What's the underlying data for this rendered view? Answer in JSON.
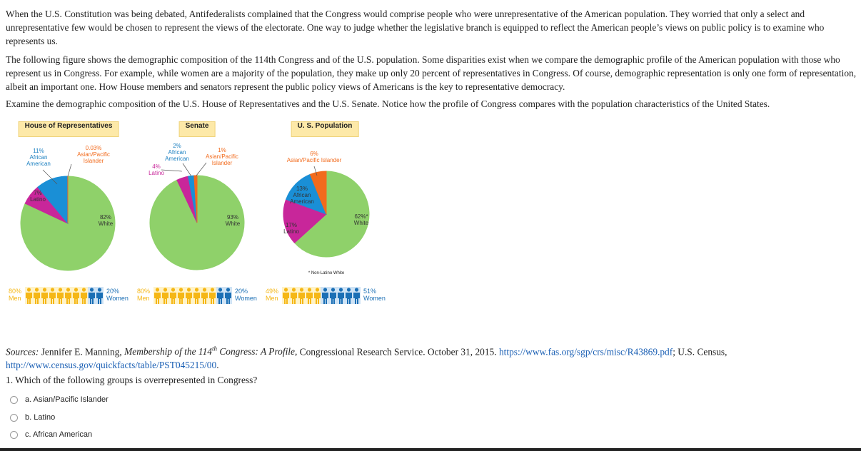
{
  "paragraphs": [
    "When the U.S. Constitution was being debated, Antifederalists complained that the Congress would comprise people who were unrepresentative of the American population. They worried that only a select and unrepresentative few would be chosen to represent the views of the electorate. One way to judge whether the legislative branch is equipped to reflect the American people’s views on public policy is to examine who represents us.",
    "The following figure shows the demographic composition of the 114th Congress and of the U.S. population. Some disparities exist when we compare the demographic profile of the American population with those who represent us in Congress. For example, while women are a majority of the population, they make up only 20 percent of representatives in Congress. Of course, demographic representation is only one form of representation, albeit an important one. How House members and senators represent the public policy views of Americans is the key to representative democracy.",
    "Examine the demographic composition of the U.S. House of Representatives and the U.S. Senate. Notice how the profile of Congress compares with the population characteristics of the United States."
  ],
  "chart_data": [
    {
      "type": "pie",
      "title": "House of Representatives",
      "categories": [
        "White",
        "Latino",
        "African American",
        "Asian/Pacific Islander"
      ],
      "values": [
        82,
        7,
        11,
        0.03
      ],
      "value_labels": [
        "82%",
        "7%",
        "11%",
        "0.03%"
      ],
      "colors": [
        "#8fd16a",
        "#c8269a",
        "#1a8fd6",
        "#f26b1d"
      ],
      "gender": {
        "categories": [
          "Men",
          "Women"
        ],
        "values": [
          80,
          20
        ],
        "value_labels": [
          "80%",
          "20%"
        ],
        "colors": [
          "#f5b716",
          "#1b6fb5"
        ]
      }
    },
    {
      "type": "pie",
      "title": "Senate",
      "categories": [
        "White",
        "Latino",
        "African American",
        "Asian/Pacific Islander"
      ],
      "values": [
        93,
        4,
        2,
        1
      ],
      "value_labels": [
        "93%",
        "4%",
        "2%",
        "1%"
      ],
      "colors": [
        "#8fd16a",
        "#c8269a",
        "#1a8fd6",
        "#f26b1d"
      ],
      "gender": {
        "categories": [
          "Men",
          "Women"
        ],
        "values": [
          80,
          20
        ],
        "value_labels": [
          "80%",
          "20%"
        ],
        "colors": [
          "#f5b716",
          "#1b6fb5"
        ]
      }
    },
    {
      "type": "pie",
      "title": "U. S. Population",
      "categories": [
        "White",
        "Latino",
        "African American",
        "Asian/Pacific Islander"
      ],
      "values": [
        62,
        17,
        13,
        6
      ],
      "value_labels": [
        "62%*",
        "17%",
        "13%",
        "6%"
      ],
      "colors": [
        "#8fd16a",
        "#c8269a",
        "#1a8fd6",
        "#f26b1d"
      ],
      "note": "* Non-Latino White",
      "gender": {
        "categories": [
          "Men",
          "Women"
        ],
        "values": [
          49,
          51
        ],
        "value_labels": [
          "49%",
          "51%"
        ],
        "colors": [
          "#f5b716",
          "#1b6fb5"
        ]
      }
    }
  ],
  "sources": [
    "Sources:",
    " Jennifer E. Manning, ",
    "Membership of the 114",
    "th",
    " Congress: A Profile,",
    " Congressional Research Service. October 31, 2015. ",
    "https://www.fas.org/sgp/crs/misc/R43869.pdf",
    "; U.S. Census, ",
    "http://www.census.gov/quickfacts/table/PST045215/00",
    "."
  ],
  "question": "1. Which of the following groups is overrepresented in Congress?",
  "options": [
    "a. Asian/Pacific Islander",
    "b. Latino",
    "c. African American"
  ]
}
